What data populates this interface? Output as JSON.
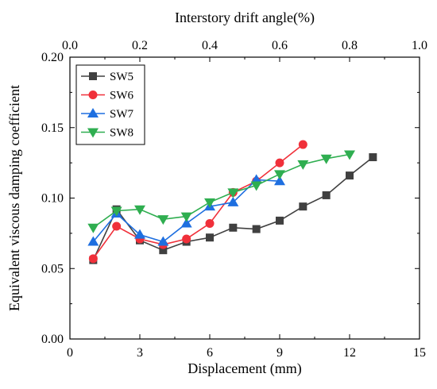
{
  "chart_data": {
    "type": "line",
    "xlabel": "Displacement (mm)",
    "ylabel": "Equivalent viscous damping coefficient",
    "top_xlabel": "Interstory drift angle(%)",
    "xlim": [
      0,
      15
    ],
    "ylim": [
      0.0,
      0.2
    ],
    "top_xlim": [
      0.0,
      1.0
    ],
    "x_ticks": [
      "0",
      "3",
      "6",
      "9",
      "12",
      "15"
    ],
    "y_ticks": [
      "0.00",
      "0.05",
      "0.10",
      "0.15",
      "0.20"
    ],
    "top_x_ticks": [
      "0.0",
      "0.2",
      "0.4",
      "0.6",
      "0.8",
      "1.0"
    ],
    "grid": false,
    "legend_position": "top-left",
    "series": [
      {
        "name": "SW5",
        "color": "#404040",
        "marker": "square",
        "x": [
          1,
          2,
          3,
          4,
          5,
          6,
          7,
          8,
          9,
          10,
          11,
          12,
          13
        ],
        "y": [
          0.056,
          0.092,
          0.07,
          0.063,
          0.069,
          0.072,
          0.079,
          0.078,
          0.084,
          0.094,
          0.102,
          0.116,
          0.129
        ]
      },
      {
        "name": "SW6",
        "color": "#f0303a",
        "marker": "circle",
        "x": [
          1,
          2,
          3,
          4,
          5,
          6,
          7,
          8,
          9,
          10
        ],
        "y": [
          0.057,
          0.08,
          0.071,
          0.067,
          0.071,
          0.082,
          0.104,
          0.112,
          0.125,
          0.138
        ]
      },
      {
        "name": "SW7",
        "color": "#1e6fe0",
        "marker": "triangle-up",
        "x": [
          1,
          2,
          3,
          4,
          5,
          6,
          7,
          8,
          9
        ],
        "y": [
          0.069,
          0.089,
          0.074,
          0.069,
          0.082,
          0.094,
          0.097,
          0.113,
          0.112
        ]
      },
      {
        "name": "SW8",
        "color": "#2fae50",
        "marker": "triangle-down",
        "x": [
          1,
          2,
          3,
          4,
          5,
          6,
          7,
          8,
          9,
          10,
          11,
          12
        ],
        "y": [
          0.079,
          0.091,
          0.092,
          0.085,
          0.087,
          0.097,
          0.104,
          0.109,
          0.117,
          0.124,
          0.128,
          0.131
        ]
      }
    ]
  }
}
